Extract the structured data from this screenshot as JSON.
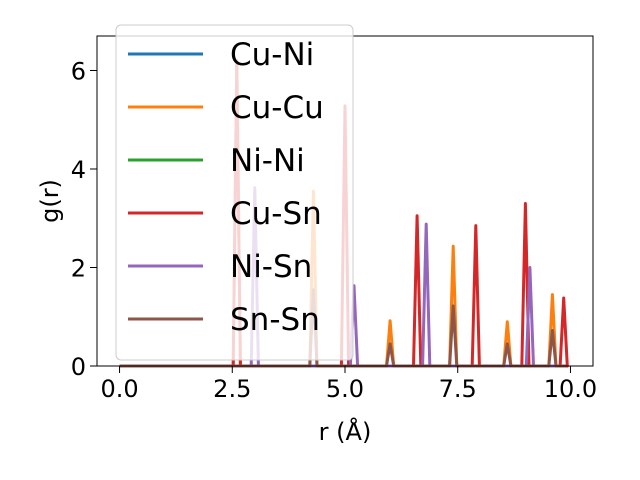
{
  "chart_data": {
    "type": "line",
    "xlabel": "r (Å)",
    "ylabel": "g(r)",
    "xlim": [
      -0.5,
      10.5
    ],
    "ylim": [
      0,
      6.7
    ],
    "xticks": [
      {
        "value": 0.0,
        "label": "0.0"
      },
      {
        "value": 2.5,
        "label": "2.5"
      },
      {
        "value": 5.0,
        "label": "5.0"
      },
      {
        "value": 7.5,
        "label": "7.5"
      },
      {
        "value": 10.0,
        "label": "10.0"
      }
    ],
    "yticks": [
      {
        "value": 0,
        "label": "0"
      },
      {
        "value": 2,
        "label": "2"
      },
      {
        "value": 4,
        "label": "4"
      },
      {
        "value": 6,
        "label": "6"
      }
    ],
    "peak_halfwidth": 0.08,
    "x_range": [
      0.0,
      9.9
    ],
    "legend_position": "upper-left",
    "series": [
      {
        "name": "Cu-Ni",
        "color": "#1f77b4",
        "peaks": []
      },
      {
        "name": "Cu-Cu",
        "color": "#ff7f0e",
        "peaks": [
          [
            2.6,
            6.2
          ],
          [
            4.3,
            3.55
          ],
          [
            6.0,
            0.92
          ],
          [
            7.4,
            2.43
          ],
          [
            8.6,
            0.9
          ],
          [
            9.6,
            1.45
          ]
        ]
      },
      {
        "name": "Ni-Ni",
        "color": "#2ca02c",
        "peaks": []
      },
      {
        "name": "Cu-Sn",
        "color": "#d62728",
        "peaks": [
          [
            2.6,
            6.2
          ],
          [
            5.0,
            5.28
          ],
          [
            6.6,
            3.05
          ],
          [
            7.9,
            2.85
          ],
          [
            9.0,
            3.3
          ],
          [
            9.85,
            1.38
          ]
        ]
      },
      {
        "name": "Ni-Sn",
        "color": "#9467bd",
        "peaks": [
          [
            3.0,
            3.62
          ],
          [
            5.2,
            1.63
          ],
          [
            6.8,
            2.88
          ],
          [
            9.1,
            2.0
          ]
        ]
      },
      {
        "name": "Sn-Sn",
        "color": "#8c564b",
        "peaks": [
          [
            4.3,
            1.55
          ],
          [
            6.0,
            0.45
          ],
          [
            7.4,
            1.22
          ],
          [
            8.6,
            0.45
          ],
          [
            9.6,
            0.72
          ]
        ]
      }
    ]
  }
}
